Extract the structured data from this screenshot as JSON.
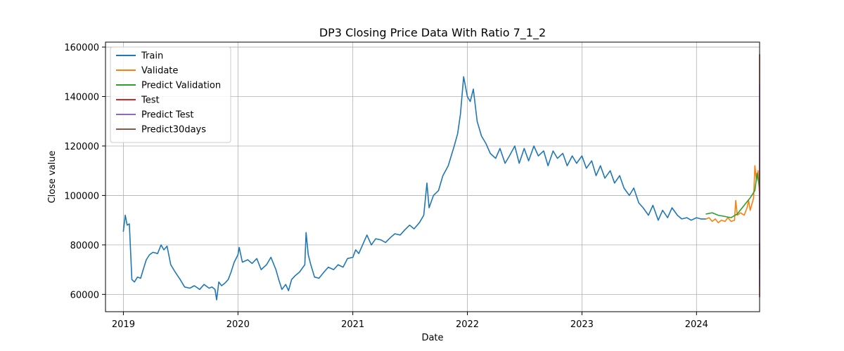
{
  "chart_data": {
    "type": "line",
    "title": "DP3 Closing Price Data With Ratio 7_1_2",
    "xlabel": "Date",
    "ylabel": "Close value",
    "xlim": [
      "2018-11-05",
      "2024-07-20"
    ],
    "ylim": [
      53000,
      162000
    ],
    "x_ticks": [
      "2019-01-01",
      "2020-01-01",
      "2021-01-01",
      "2022-01-01",
      "2023-01-01",
      "2024-01-01"
    ],
    "x_tick_labels": [
      "2019",
      "2020",
      "2021",
      "2022",
      "2023",
      "2024"
    ],
    "y_ticks": [
      60000,
      80000,
      100000,
      120000,
      140000,
      160000
    ],
    "y_tick_labels": [
      "60000",
      "80000",
      "100000",
      "120000",
      "140000",
      "160000"
    ],
    "grid": true,
    "legend_position": "upper-left",
    "series": [
      {
        "name": "Train",
        "color": "#1f77b4",
        "points": [
          [
            "2019-01-01",
            85500
          ],
          [
            "2019-01-07",
            92000
          ],
          [
            "2019-01-13",
            88000
          ],
          [
            "2019-01-20",
            88500
          ],
          [
            "2019-01-28",
            66000
          ],
          [
            "2019-02-05",
            65000
          ],
          [
            "2019-02-15",
            67000
          ],
          [
            "2019-02-25",
            66500
          ],
          [
            "2019-03-05",
            70000
          ],
          [
            "2019-03-15",
            74000
          ],
          [
            "2019-03-25",
            76000
          ],
          [
            "2019-04-05",
            77000
          ],
          [
            "2019-04-20",
            76500
          ],
          [
            "2019-05-01",
            80000
          ],
          [
            "2019-05-10",
            78000
          ],
          [
            "2019-05-20",
            79500
          ],
          [
            "2019-06-01",
            72000
          ],
          [
            "2019-06-15",
            69000
          ],
          [
            "2019-07-01",
            66000
          ],
          [
            "2019-07-15",
            63000
          ],
          [
            "2019-08-01",
            62500
          ],
          [
            "2019-08-15",
            63500
          ],
          [
            "2019-09-01",
            62000
          ],
          [
            "2019-09-15",
            64000
          ],
          [
            "2019-10-01",
            62500
          ],
          [
            "2019-10-10",
            63000
          ],
          [
            "2019-10-20",
            62000
          ],
          [
            "2019-10-25",
            57800
          ],
          [
            "2019-11-01",
            65000
          ],
          [
            "2019-11-10",
            63500
          ],
          [
            "2019-11-20",
            64500
          ],
          [
            "2019-12-01",
            66000
          ],
          [
            "2019-12-10",
            69000
          ],
          [
            "2019-12-20",
            73000
          ],
          [
            "2020-01-01",
            76000
          ],
          [
            "2020-01-05",
            79000
          ],
          [
            "2020-01-15",
            73000
          ],
          [
            "2020-02-01",
            74000
          ],
          [
            "2020-02-15",
            72500
          ],
          [
            "2020-03-01",
            74500
          ],
          [
            "2020-03-15",
            70000
          ],
          [
            "2020-04-01",
            72000
          ],
          [
            "2020-04-15",
            75000
          ],
          [
            "2020-05-01",
            70000
          ],
          [
            "2020-05-10",
            66000
          ],
          [
            "2020-05-20",
            62000
          ],
          [
            "2020-06-01",
            64000
          ],
          [
            "2020-06-10",
            61500
          ],
          [
            "2020-06-20",
            66000
          ],
          [
            "2020-07-01",
            67500
          ],
          [
            "2020-07-15",
            69000
          ],
          [
            "2020-08-01",
            72000
          ],
          [
            "2020-08-05",
            85000
          ],
          [
            "2020-08-12",
            76000
          ],
          [
            "2020-08-20",
            72000
          ],
          [
            "2020-09-01",
            67000
          ],
          [
            "2020-09-15",
            66500
          ],
          [
            "2020-10-01",
            69000
          ],
          [
            "2020-10-15",
            71000
          ],
          [
            "2020-11-01",
            70000
          ],
          [
            "2020-11-15",
            72000
          ],
          [
            "2020-12-01",
            71000
          ],
          [
            "2020-12-15",
            74500
          ],
          [
            "2021-01-01",
            75000
          ],
          [
            "2021-01-10",
            78000
          ],
          [
            "2021-01-20",
            76500
          ],
          [
            "2021-02-01",
            80000
          ],
          [
            "2021-02-15",
            84000
          ],
          [
            "2021-03-01",
            80000
          ],
          [
            "2021-03-15",
            82500
          ],
          [
            "2021-04-01",
            82000
          ],
          [
            "2021-04-15",
            81000
          ],
          [
            "2021-05-01",
            83000
          ],
          [
            "2021-05-15",
            84500
          ],
          [
            "2021-06-01",
            84000
          ],
          [
            "2021-06-15",
            86000
          ],
          [
            "2021-07-01",
            88000
          ],
          [
            "2021-07-15",
            86500
          ],
          [
            "2021-08-01",
            89000
          ],
          [
            "2021-08-15",
            92000
          ],
          [
            "2021-08-25",
            105000
          ],
          [
            "2021-09-01",
            95000
          ],
          [
            "2021-09-15",
            100000
          ],
          [
            "2021-10-01",
            102000
          ],
          [
            "2021-10-15",
            108000
          ],
          [
            "2021-11-01",
            112000
          ],
          [
            "2021-11-20",
            120000
          ],
          [
            "2021-12-01",
            125000
          ],
          [
            "2021-12-10",
            133000
          ],
          [
            "2021-12-20",
            148000
          ],
          [
            "2022-01-01",
            140000
          ],
          [
            "2022-01-10",
            138000
          ],
          [
            "2022-01-20",
            143000
          ],
          [
            "2022-02-01",
            130000
          ],
          [
            "2022-02-15",
            124000
          ],
          [
            "2022-03-01",
            121000
          ],
          [
            "2022-03-15",
            117000
          ],
          [
            "2022-04-01",
            115000
          ],
          [
            "2022-04-15",
            119000
          ],
          [
            "2022-05-01",
            113000
          ],
          [
            "2022-05-15",
            116000
          ],
          [
            "2022-06-01",
            120000
          ],
          [
            "2022-06-15",
            113000
          ],
          [
            "2022-07-01",
            119000
          ],
          [
            "2022-07-15",
            114000
          ],
          [
            "2022-08-01",
            120000
          ],
          [
            "2022-08-15",
            116000
          ],
          [
            "2022-09-01",
            118000
          ],
          [
            "2022-09-15",
            112000
          ],
          [
            "2022-10-01",
            118000
          ],
          [
            "2022-10-15",
            115000
          ],
          [
            "2022-11-01",
            117000
          ],
          [
            "2022-11-15",
            112000
          ],
          [
            "2022-12-01",
            116000
          ],
          [
            "2022-12-15",
            113000
          ],
          [
            "2023-01-01",
            116000
          ],
          [
            "2023-01-15",
            111000
          ],
          [
            "2023-02-01",
            114000
          ],
          [
            "2023-02-15",
            108000
          ],
          [
            "2023-03-01",
            112000
          ],
          [
            "2023-03-15",
            107000
          ],
          [
            "2023-04-01",
            110000
          ],
          [
            "2023-04-15",
            105000
          ],
          [
            "2023-05-01",
            108000
          ],
          [
            "2023-05-15",
            103000
          ],
          [
            "2023-06-01",
            100000
          ],
          [
            "2023-06-15",
            103000
          ],
          [
            "2023-07-01",
            97000
          ],
          [
            "2023-07-15",
            95000
          ],
          [
            "2023-08-01",
            92000
          ],
          [
            "2023-08-15",
            96000
          ],
          [
            "2023-09-01",
            90000
          ],
          [
            "2023-09-15",
            94000
          ],
          [
            "2023-10-01",
            91000
          ],
          [
            "2023-10-15",
            95000
          ],
          [
            "2023-11-01",
            92000
          ],
          [
            "2023-11-15",
            90500
          ],
          [
            "2023-12-01",
            91000
          ],
          [
            "2023-12-15",
            90000
          ],
          [
            "2024-01-01",
            91000
          ],
          [
            "2024-01-15",
            90500
          ],
          [
            "2024-02-01",
            90500
          ]
        ]
      },
      {
        "name": "Validate",
        "color": "#ff7f0e",
        "points": [
          [
            "2024-02-01",
            90500
          ],
          [
            "2024-02-10",
            91000
          ],
          [
            "2024-02-20",
            89500
          ],
          [
            "2024-03-01",
            90500
          ],
          [
            "2024-03-10",
            89000
          ],
          [
            "2024-03-20",
            90000
          ],
          [
            "2024-04-01",
            89500
          ],
          [
            "2024-04-10",
            91000
          ],
          [
            "2024-04-20",
            89500
          ],
          [
            "2024-05-01",
            90000
          ],
          [
            "2024-05-05",
            98000
          ],
          [
            "2024-05-10",
            92000
          ],
          [
            "2024-05-20",
            93000
          ],
          [
            "2024-06-01",
            92000
          ],
          [
            "2024-06-10",
            95000
          ],
          [
            "2024-06-15",
            98000
          ],
          [
            "2024-06-20",
            94000
          ],
          [
            "2024-07-01",
            99000
          ],
          [
            "2024-07-05",
            112000
          ],
          [
            "2024-07-10",
            106000
          ],
          [
            "2024-07-15",
            110000
          ],
          [
            "2024-07-20",
            100000
          ]
        ]
      },
      {
        "name": "Predict Validation",
        "color": "#2ca02c",
        "points": [
          [
            "2024-02-01",
            92500
          ],
          [
            "2024-02-20",
            93000
          ],
          [
            "2024-03-10",
            92000
          ],
          [
            "2024-04-01",
            91500
          ],
          [
            "2024-04-20",
            91000
          ],
          [
            "2024-05-10",
            92500
          ],
          [
            "2024-06-01",
            96000
          ],
          [
            "2024-06-20",
            99000
          ],
          [
            "2024-07-05",
            102000
          ],
          [
            "2024-07-12",
            109000
          ],
          [
            "2024-07-20",
            103000
          ]
        ]
      },
      {
        "name": "Test",
        "color": "#d62728",
        "points": [
          [
            "2024-07-20",
            100000
          ],
          [
            "2024-07-20",
            108000
          ],
          [
            "2024-07-20",
            122000
          ],
          [
            "2024-07-20",
            148000
          ],
          [
            "2024-07-20",
            157000
          ],
          [
            "2024-07-20",
            152000
          ],
          [
            "2024-07-20",
            135000
          ],
          [
            "2024-07-20",
            80000
          ],
          [
            "2024-07-20",
            70000
          ],
          [
            "2024-07-20",
            64000
          ],
          [
            "2024-07-20",
            59000
          ],
          [
            "2024-07-20",
            63000
          ],
          [
            "2024-07-20",
            66000
          ],
          [
            "2024-07-20",
            72000
          ],
          [
            "2024-07-20",
            71000
          ],
          [
            "2024-07-20",
            68000
          ]
        ]
      },
      {
        "name": "Predict Test",
        "color": "#9467bd",
        "points": [
          [
            "2024-07-20",
            102000
          ],
          [
            "2024-07-20",
            120000
          ],
          [
            "2024-07-20",
            145000
          ],
          [
            "2024-07-20",
            142000
          ],
          [
            "2024-07-20",
            90000
          ],
          [
            "2024-07-20",
            66000
          ],
          [
            "2024-07-20",
            72000
          ],
          [
            "2024-07-20",
            63000
          ],
          [
            "2024-07-20",
            66000
          ],
          [
            "2024-07-20",
            73000
          ],
          [
            "2024-07-20",
            76000
          ],
          [
            "2024-07-20",
            72000
          ]
        ]
      },
      {
        "name": "Predict30days",
        "color": "#8c564b",
        "points": [
          [
            "2024-07-20",
            71000
          ],
          [
            "2024-07-20",
            70500
          ],
          [
            "2024-07-20",
            80500
          ]
        ]
      }
    ]
  }
}
